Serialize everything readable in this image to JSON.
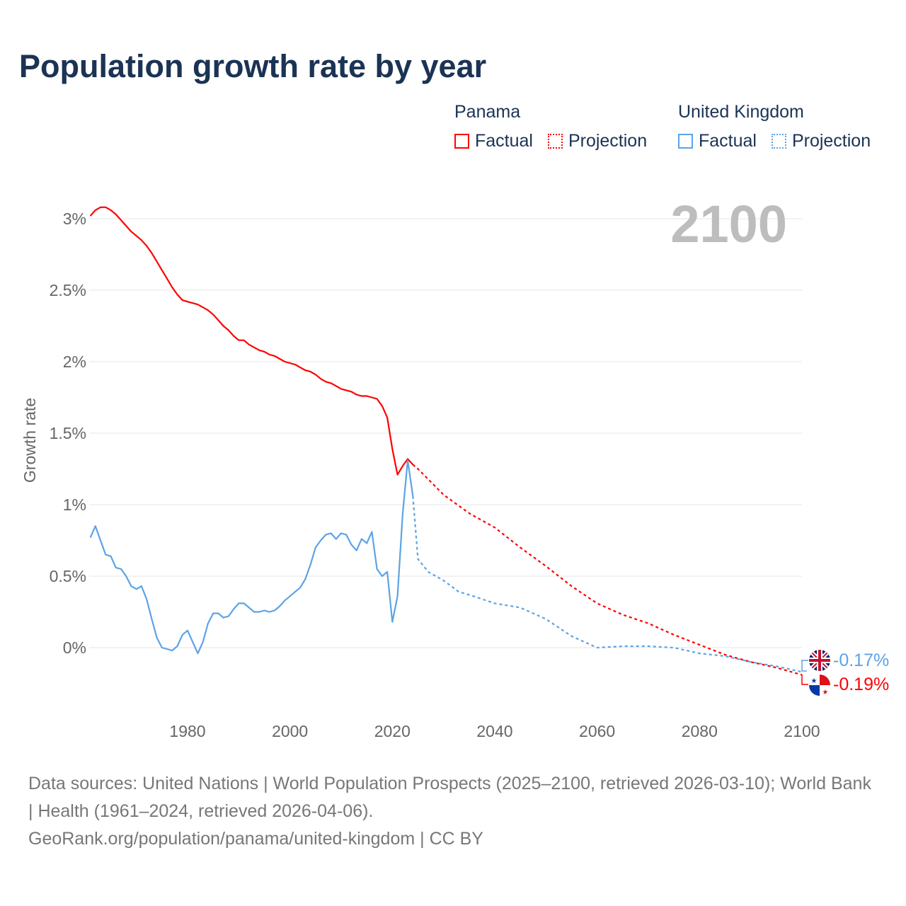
{
  "title": "Population growth rate by year",
  "legend": {
    "groups": [
      {
        "country": "Panama",
        "factual": "Factual",
        "projection": "Projection",
        "color": "#ff0000"
      },
      {
        "country": "United Kingdom",
        "factual": "Factual",
        "projection": "Projection",
        "color": "#5ca3e6"
      }
    ]
  },
  "year_label": "2100",
  "end_labels": {
    "uk": "-0.17%",
    "panama": "-0.19%"
  },
  "footer": {
    "sources": "Data sources: United Nations | World Population Prospects (2025–2100, retrieved 2026-03-10); World Bank | Health (1961–2024, retrieved 2026-04-06).",
    "credit": "GeoRank.org/population/panama/united-kingdom | CC BY"
  },
  "chart_data": {
    "type": "line",
    "title": "Population growth rate by year",
    "xlabel": "",
    "ylabel": "Growth rate",
    "xlim": [
      1961,
      2100
    ],
    "ylim": [
      -0.3,
      3.1
    ],
    "grid": true,
    "legend_position": "top-right",
    "x_ticks": [
      1980,
      2000,
      2020,
      2040,
      2060,
      2080,
      2100
    ],
    "x_tick_labels": [
      "1980",
      "2000",
      "2020",
      "2040",
      "2060",
      "2080",
      "2100"
    ],
    "y_ticks": [
      0,
      0.5,
      1,
      1.5,
      2,
      2.5,
      3
    ],
    "y_tick_labels": [
      "0%",
      "0.5%",
      "1%",
      "1.5%",
      "2%",
      "2.5%",
      "3%"
    ],
    "series": [
      {
        "name": "Panama Factual",
        "color": "#ff0000",
        "style": "solid",
        "start_year": 1961,
        "values": [
          3.02,
          3.06,
          3.08,
          3.08,
          3.06,
          3.03,
          2.99,
          2.95,
          2.91,
          2.88,
          2.85,
          2.81,
          2.76,
          2.7,
          2.64,
          2.58,
          2.52,
          2.47,
          2.43,
          2.42,
          2.41,
          2.4,
          2.38,
          2.36,
          2.33,
          2.29,
          2.25,
          2.22,
          2.18,
          2.15,
          2.15,
          2.12,
          2.1,
          2.08,
          2.07,
          2.05,
          2.04,
          2.02,
          2.0,
          1.99,
          1.98,
          1.96,
          1.94,
          1.93,
          1.91,
          1.88,
          1.86,
          1.85,
          1.83,
          1.81,
          1.8,
          1.79,
          1.77,
          1.76,
          1.76,
          1.75,
          1.74,
          1.69,
          1.61,
          1.39,
          1.21,
          1.27,
          1.32,
          1.28
        ]
      },
      {
        "name": "Panama Projection",
        "color": "#ff0000",
        "style": "dotted",
        "x": [
          2024,
          2025,
          2030,
          2035,
          2040,
          2045,
          2050,
          2055,
          2060,
          2065,
          2070,
          2075,
          2080,
          2085,
          2090,
          2095,
          2100
        ],
        "values": [
          1.28,
          1.25,
          1.07,
          0.94,
          0.84,
          0.7,
          0.57,
          0.43,
          0.31,
          0.23,
          0.17,
          0.09,
          0.02,
          -0.05,
          -0.1,
          -0.14,
          -0.19
        ]
      },
      {
        "name": "United Kingdom Factual",
        "color": "#5ca3e6",
        "style": "solid",
        "start_year": 1961,
        "values": [
          0.77,
          0.85,
          0.75,
          0.65,
          0.64,
          0.56,
          0.55,
          0.5,
          0.43,
          0.41,
          0.43,
          0.34,
          0.2,
          0.07,
          0.0,
          -0.01,
          -0.02,
          0.01,
          0.09,
          0.12,
          0.04,
          -0.04,
          0.04,
          0.17,
          0.24,
          0.24,
          0.21,
          0.22,
          0.27,
          0.31,
          0.31,
          0.28,
          0.25,
          0.25,
          0.26,
          0.25,
          0.26,
          0.29,
          0.33,
          0.36,
          0.39,
          0.42,
          0.48,
          0.58,
          0.7,
          0.75,
          0.79,
          0.8,
          0.76,
          0.8,
          0.79,
          0.72,
          0.68,
          0.76,
          0.73,
          0.81,
          0.55,
          0.5,
          0.53,
          0.18,
          0.36,
          0.93,
          1.31,
          1.06
        ]
      },
      {
        "name": "United Kingdom Projection",
        "color": "#5ca3e6",
        "style": "dotted",
        "x": [
          2024,
          2025,
          2027,
          2030,
          2033,
          2035,
          2040,
          2045,
          2050,
          2055,
          2060,
          2065,
          2070,
          2075,
          2080,
          2085,
          2090,
          2095,
          2100
        ],
        "values": [
          1.06,
          0.62,
          0.53,
          0.47,
          0.39,
          0.37,
          0.31,
          0.28,
          0.2,
          0.08,
          0.0,
          0.01,
          0.01,
          0.0,
          -0.04,
          -0.06,
          -0.1,
          -0.13,
          -0.17
        ]
      }
    ]
  }
}
